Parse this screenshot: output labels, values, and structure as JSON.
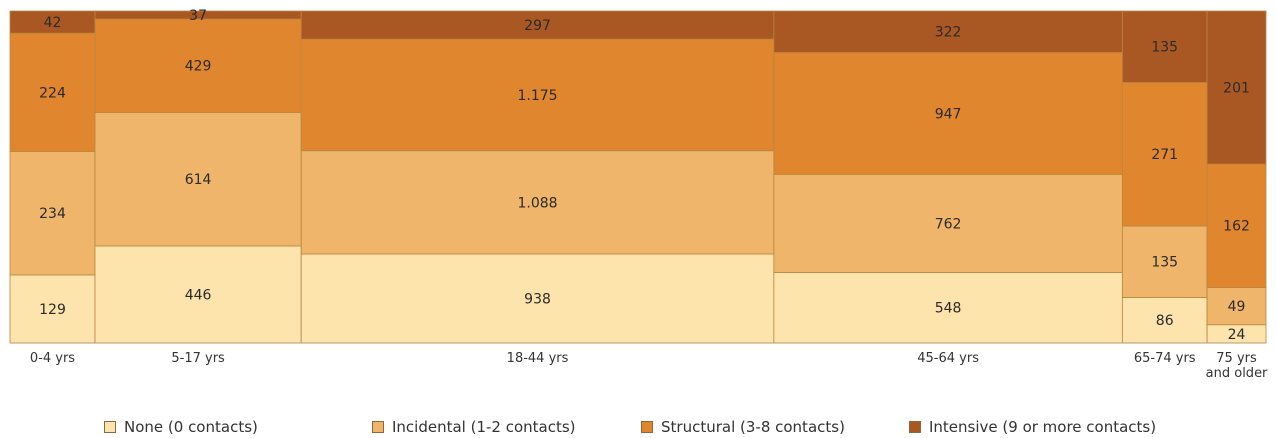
{
  "chart_data": {
    "type": "mosaic",
    "title": "",
    "categories": [
      "0-4 yrs",
      "5-17 yrs",
      "18-44 yrs",
      "45-64 yrs",
      "65-74 yrs",
      "75 yrs\nand older"
    ],
    "series": [
      {
        "name": "None (0 contacts)",
        "color": "#fde4ac",
        "values": [
          129,
          446,
          938,
          548,
          86,
          24
        ],
        "labels": [
          "129",
          "446",
          "938",
          "548",
          "86",
          "24"
        ]
      },
      {
        "name": "Incidental (1-2 contacts)",
        "color": "#efb56a",
        "values": [
          234,
          614,
          1088,
          762,
          135,
          49
        ],
        "labels": [
          "234",
          "614",
          "1.088",
          "762",
          "135",
          "49"
        ]
      },
      {
        "name": "Structural (3-8 contacts)",
        "color": "#e0862f",
        "values": [
          224,
          429,
          1175,
          947,
          271,
          162
        ],
        "labels": [
          "224",
          "429",
          "1.175",
          "947",
          "271",
          "162"
        ]
      },
      {
        "name": "Intensive (9 or more contacts)",
        "color": "#a95823",
        "values": [
          42,
          37,
          297,
          322,
          135,
          201
        ],
        "labels": [
          "42",
          "37",
          "297",
          "322",
          "135",
          "201"
        ]
      }
    ],
    "legend_position": "bottom",
    "grid": false
  }
}
